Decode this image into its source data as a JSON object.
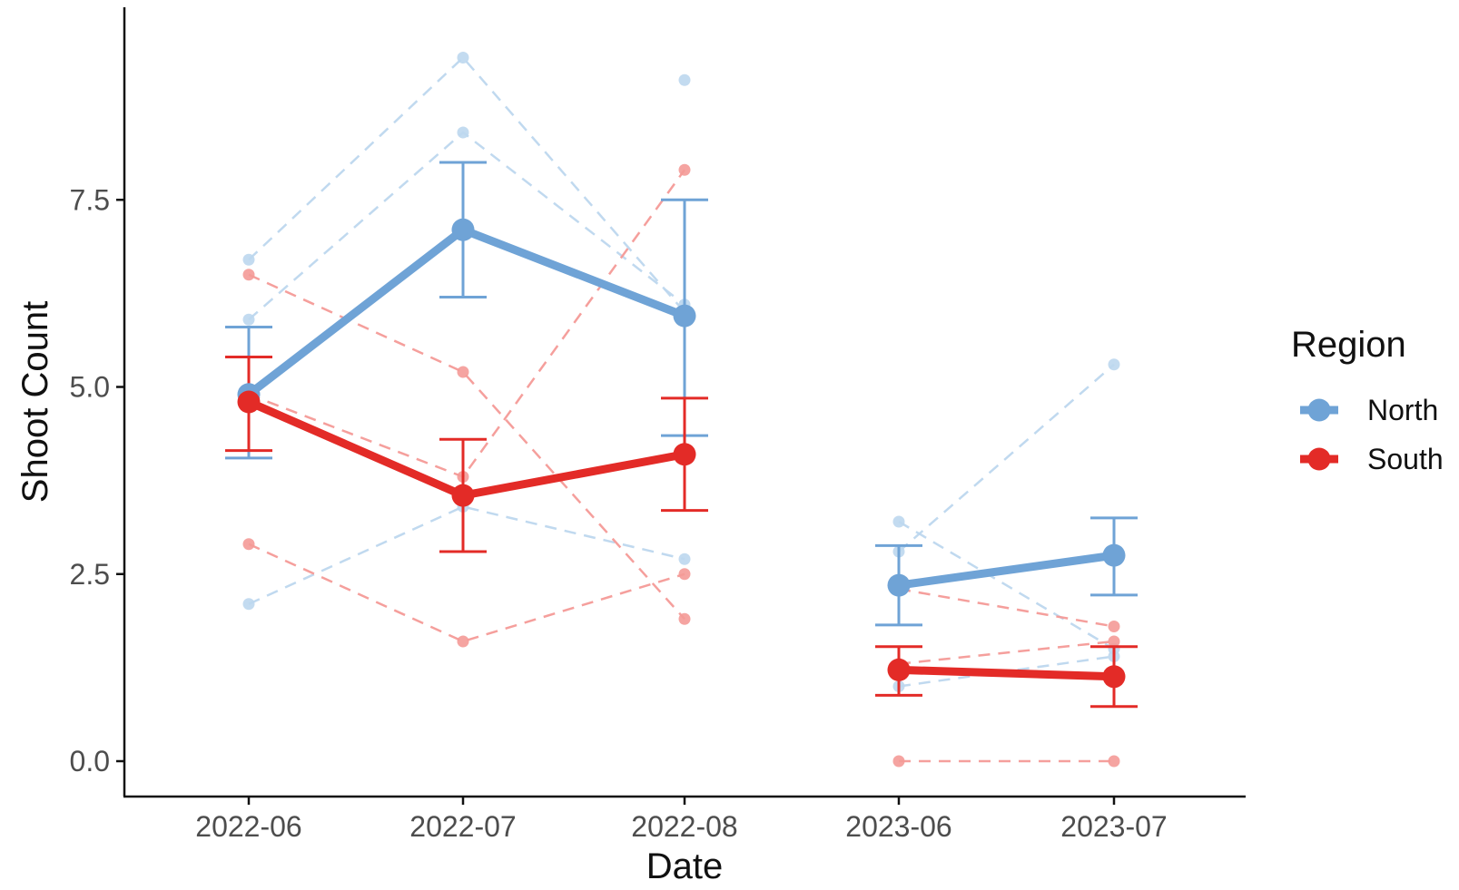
{
  "chart_data": {
    "type": "line",
    "xlabel": "Date",
    "ylabel": "Shoot Count",
    "categories": [
      "2022-06",
      "2022-07",
      "2022-08",
      "2023-06",
      "2023-07"
    ],
    "ylim": [
      -0.45,
      9.9
    ],
    "yticks": [
      0.0,
      2.5,
      5.0,
      7.5
    ],
    "ytick_labels": [
      "0.0",
      "2.5",
      "5.0",
      "7.5"
    ],
    "grid": false,
    "legend": {
      "title": "Region",
      "placement": "right",
      "entries": [
        "North",
        "South"
      ]
    },
    "colors": {
      "North": "#6fa3d6",
      "South": "#e32b27",
      "North_light": "#bdd7ee",
      "South_light": "#f49a97",
      "axis": "#111111",
      "tick_label": "#4d4d4d"
    },
    "series": [
      {
        "name": "North",
        "segments": [
          {
            "categories": [
              "2022-06",
              "2022-07",
              "2022-08"
            ],
            "means": [
              4.9,
              7.1,
              5.95
            ],
            "lower": [
              4.05,
              6.2,
              4.35
            ],
            "upper": [
              5.8,
              8.0,
              7.5
            ]
          },
          {
            "categories": [
              "2023-06",
              "2023-07"
            ],
            "means": [
              2.35,
              2.75
            ],
            "lower": [
              1.82,
              2.22
            ],
            "upper": [
              2.88,
              3.25
            ]
          }
        ]
      },
      {
        "name": "South",
        "segments": [
          {
            "categories": [
              "2022-06",
              "2022-07",
              "2022-08"
            ],
            "means": [
              4.8,
              3.55,
              4.1
            ],
            "lower": [
              4.15,
              2.8,
              3.35
            ],
            "upper": [
              5.4,
              4.3,
              4.85
            ]
          },
          {
            "categories": [
              "2023-06",
              "2023-07"
            ],
            "means": [
              1.22,
              1.13
            ],
            "lower": [
              0.88,
              0.73
            ],
            "upper": [
              1.53,
              1.53
            ]
          }
        ]
      }
    ],
    "individual_series": [
      {
        "group": "North",
        "categories": [
          "2022-06",
          "2022-07",
          "2022-08"
        ],
        "values": [
          6.7,
          9.4,
          6.0
        ]
      },
      {
        "group": "North",
        "categories": [
          "2022-06",
          "2022-07",
          "2022-08"
        ],
        "values": [
          5.9,
          8.4,
          6.1
        ]
      },
      {
        "group": "North",
        "categories": [
          "2022-06",
          "2022-07",
          "2022-08"
        ],
        "values": [
          2.1,
          3.4,
          2.7
        ]
      },
      {
        "group": "North",
        "categories": [
          "2022-08"
        ],
        "values": [
          9.1
        ]
      },
      {
        "group": "North",
        "categories": [
          "2023-06",
          "2023-07"
        ],
        "values": [
          3.2,
          1.5
        ]
      },
      {
        "group": "North",
        "categories": [
          "2023-06",
          "2023-07"
        ],
        "values": [
          2.8,
          5.3
        ]
      },
      {
        "group": "North",
        "categories": [
          "2023-06",
          "2023-07"
        ],
        "values": [
          1.0,
          1.4
        ]
      },
      {
        "group": "South",
        "categories": [
          "2022-06",
          "2022-07",
          "2022-08"
        ],
        "values": [
          6.5,
          5.2,
          1.9
        ]
      },
      {
        "group": "South",
        "categories": [
          "2022-06",
          "2022-07",
          "2022-08"
        ],
        "values": [
          4.9,
          3.8,
          7.9
        ]
      },
      {
        "group": "South",
        "categories": [
          "2022-06",
          "2022-07",
          "2022-08"
        ],
        "values": [
          2.9,
          1.6,
          2.5
        ]
      },
      {
        "group": "South",
        "categories": [
          "2023-06",
          "2023-07"
        ],
        "values": [
          2.3,
          1.8
        ]
      },
      {
        "group": "South",
        "categories": [
          "2023-06",
          "2023-07"
        ],
        "values": [
          1.3,
          1.6
        ]
      },
      {
        "group": "South",
        "categories": [
          "2023-06",
          "2023-07"
        ],
        "values": [
          0.0,
          0.0
        ]
      }
    ]
  }
}
